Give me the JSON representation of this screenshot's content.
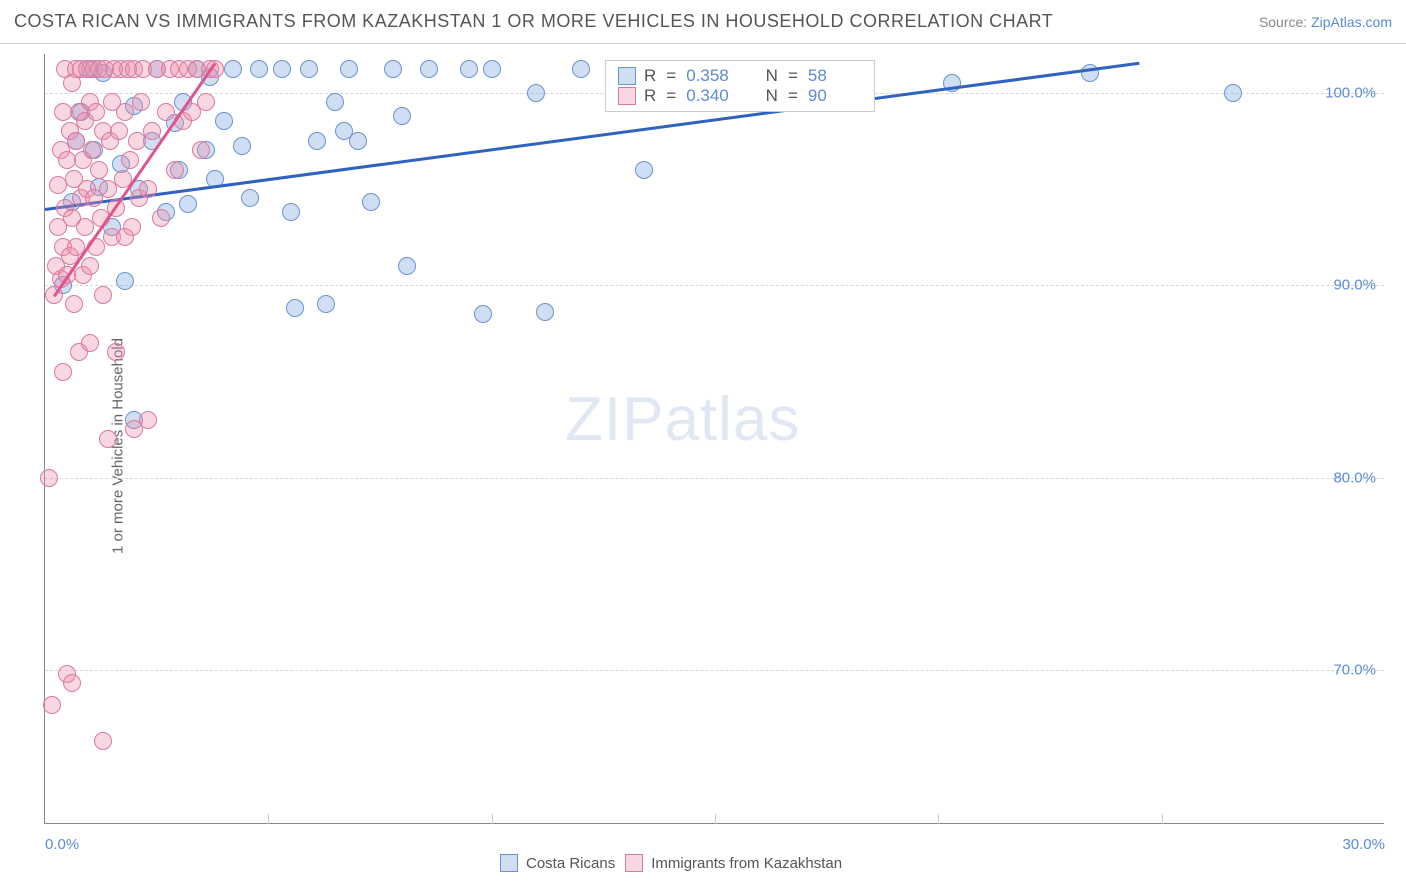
{
  "title": "COSTA RICAN VS IMMIGRANTS FROM KAZAKHSTAN 1 OR MORE VEHICLES IN HOUSEHOLD CORRELATION CHART",
  "source_prefix": "Source: ",
  "source_link": "ZipAtlas.com",
  "y_axis_label": "1 or more Vehicles in Household",
  "watermark_zip": "ZIP",
  "watermark_atlas": "atlas",
  "chart": {
    "type": "scatter",
    "xlim": [
      0,
      30
    ],
    "ylim": [
      62,
      102
    ],
    "x_ticks": [
      0,
      30
    ],
    "x_tick_labels": [
      "0.0%",
      "30.0%"
    ],
    "x_minor_ticks": [
      5,
      10,
      15,
      20,
      25
    ],
    "y_ticks": [
      70,
      80,
      90,
      100
    ],
    "y_tick_labels": [
      "70.0%",
      "80.0%",
      "90.0%",
      "100.0%"
    ],
    "grid_color": "#d8d8d8",
    "axis_color": "#888888",
    "background_color": "#ffffff",
    "marker_radius": 9,
    "series": [
      {
        "name": "Costa Ricans",
        "marker_fill": "rgba(120,160,220,0.35)",
        "marker_stroke": "#6a93d0",
        "trend_color": "#2f63c0",
        "R": "0.358",
        "N": "58",
        "trend": {
          "x1": 0,
          "y1": 94.0,
          "x2": 24.5,
          "y2": 101.6
        },
        "points": [
          [
            0.4,
            90.0
          ],
          [
            0.6,
            94.3
          ],
          [
            0.7,
            97.5
          ],
          [
            0.8,
            99.0
          ],
          [
            1.0,
            101.2
          ],
          [
            1.1,
            97.0
          ],
          [
            1.2,
            95.1
          ],
          [
            1.3,
            101.0
          ],
          [
            1.5,
            93.0
          ],
          [
            1.7,
            96.3
          ],
          [
            1.8,
            90.2
          ],
          [
            2.0,
            99.3
          ],
          [
            2.0,
            83.0
          ],
          [
            2.1,
            95.0
          ],
          [
            2.4,
            97.5
          ],
          [
            2.5,
            101.2
          ],
          [
            2.7,
            93.8
          ],
          [
            2.9,
            98.4
          ],
          [
            3.0,
            96.0
          ],
          [
            3.1,
            99.5
          ],
          [
            3.2,
            94.2
          ],
          [
            3.4,
            101.2
          ],
          [
            3.6,
            97.0
          ],
          [
            3.7,
            100.8
          ],
          [
            3.8,
            95.5
          ],
          [
            4.0,
            98.5
          ],
          [
            4.2,
            101.2
          ],
          [
            4.4,
            97.2
          ],
          [
            4.6,
            94.5
          ],
          [
            4.8,
            101.2
          ],
          [
            5.3,
            101.2
          ],
          [
            5.5,
            93.8
          ],
          [
            5.6,
            88.8
          ],
          [
            5.9,
            101.2
          ],
          [
            6.1,
            97.5
          ],
          [
            6.3,
            89.0
          ],
          [
            6.5,
            99.5
          ],
          [
            6.7,
            98.0
          ],
          [
            6.8,
            101.2
          ],
          [
            7.0,
            97.5
          ],
          [
            7.3,
            94.3
          ],
          [
            7.8,
            101.2
          ],
          [
            8.0,
            98.8
          ],
          [
            8.1,
            91.0
          ],
          [
            8.6,
            101.2
          ],
          [
            9.5,
            101.2
          ],
          [
            9.8,
            88.5
          ],
          [
            10.0,
            101.2
          ],
          [
            11.0,
            100.0
          ],
          [
            11.2,
            88.6
          ],
          [
            12.0,
            101.2
          ],
          [
            13.4,
            96.0
          ],
          [
            14.5,
            101.2
          ],
          [
            15.6,
            101.2
          ],
          [
            18.2,
            101.2
          ],
          [
            20.3,
            100.5
          ],
          [
            23.4,
            101.0
          ],
          [
            26.6,
            100.0
          ]
        ]
      },
      {
        "name": "Immigrants from Kazakhstan",
        "marker_fill": "rgba(235,140,170,0.35)",
        "marker_stroke": "#d97aa0",
        "trend_color": "#e05590",
        "R": "0.340",
        "N": "90",
        "trend": {
          "x1": 0.2,
          "y1": 89.5,
          "x2": 3.8,
          "y2": 101.6
        },
        "points": [
          [
            0.1,
            80.0
          ],
          [
            0.15,
            68.2
          ],
          [
            0.2,
            89.5
          ],
          [
            0.25,
            91.0
          ],
          [
            0.3,
            93.0
          ],
          [
            0.3,
            95.2
          ],
          [
            0.35,
            97.0
          ],
          [
            0.35,
            90.3
          ],
          [
            0.4,
            99.0
          ],
          [
            0.4,
            92.0
          ],
          [
            0.4,
            85.5
          ],
          [
            0.45,
            101.2
          ],
          [
            0.45,
            94.0
          ],
          [
            0.5,
            96.5
          ],
          [
            0.5,
            90.5
          ],
          [
            0.5,
            69.8
          ],
          [
            0.55,
            98.0
          ],
          [
            0.55,
            91.5
          ],
          [
            0.6,
            100.5
          ],
          [
            0.6,
            93.5
          ],
          [
            0.6,
            69.3
          ],
          [
            0.65,
            95.5
          ],
          [
            0.65,
            89.0
          ],
          [
            0.7,
            97.5
          ],
          [
            0.7,
            101.2
          ],
          [
            0.7,
            92.0
          ],
          [
            0.75,
            99.0
          ],
          [
            0.75,
            86.5
          ],
          [
            0.8,
            94.5
          ],
          [
            0.8,
            101.2
          ],
          [
            0.85,
            96.5
          ],
          [
            0.85,
            90.5
          ],
          [
            0.9,
            98.5
          ],
          [
            0.9,
            93.0
          ],
          [
            0.95,
            101.2
          ],
          [
            0.95,
            95.0
          ],
          [
            1.0,
            99.5
          ],
          [
            1.0,
            91.0
          ],
          [
            1.0,
            87.0
          ],
          [
            1.05,
            97.0
          ],
          [
            1.1,
            101.2
          ],
          [
            1.1,
            94.5
          ],
          [
            1.15,
            99.0
          ],
          [
            1.15,
            92.0
          ],
          [
            1.2,
            96.0
          ],
          [
            1.2,
            101.2
          ],
          [
            1.25,
            93.5
          ],
          [
            1.3,
            98.0
          ],
          [
            1.3,
            89.5
          ],
          [
            1.3,
            66.3
          ],
          [
            1.35,
            101.2
          ],
          [
            1.4,
            95.0
          ],
          [
            1.4,
            82.0
          ],
          [
            1.45,
            97.5
          ],
          [
            1.5,
            99.5
          ],
          [
            1.5,
            92.5
          ],
          [
            1.55,
            101.2
          ],
          [
            1.6,
            94.0
          ],
          [
            1.6,
            86.5
          ],
          [
            1.65,
            98.0
          ],
          [
            1.7,
            101.2
          ],
          [
            1.75,
            95.5
          ],
          [
            1.8,
            92.5
          ],
          [
            1.8,
            99.0
          ],
          [
            1.85,
            101.2
          ],
          [
            1.9,
            96.5
          ],
          [
            1.95,
            93.0
          ],
          [
            2.0,
            101.2
          ],
          [
            2.0,
            82.5
          ],
          [
            2.05,
            97.5
          ],
          [
            2.1,
            94.5
          ],
          [
            2.15,
            99.5
          ],
          [
            2.2,
            101.2
          ],
          [
            2.3,
            95.0
          ],
          [
            2.3,
            83.0
          ],
          [
            2.4,
            98.0
          ],
          [
            2.5,
            101.2
          ],
          [
            2.6,
            93.5
          ],
          [
            2.7,
            99.0
          ],
          [
            2.8,
            101.2
          ],
          [
            2.9,
            96.0
          ],
          [
            3.0,
            101.2
          ],
          [
            3.1,
            98.5
          ],
          [
            3.2,
            101.2
          ],
          [
            3.3,
            99.0
          ],
          [
            3.4,
            101.2
          ],
          [
            3.5,
            97.0
          ],
          [
            3.6,
            99.5
          ],
          [
            3.7,
            101.2
          ],
          [
            3.8,
            101.2
          ]
        ]
      }
    ]
  },
  "stats_panel": {
    "R_label": "R",
    "N_label": "N",
    "eq": "="
  },
  "bottom_legend_labels": [
    "Costa Ricans",
    "Immigrants from Kazakhstan"
  ]
}
